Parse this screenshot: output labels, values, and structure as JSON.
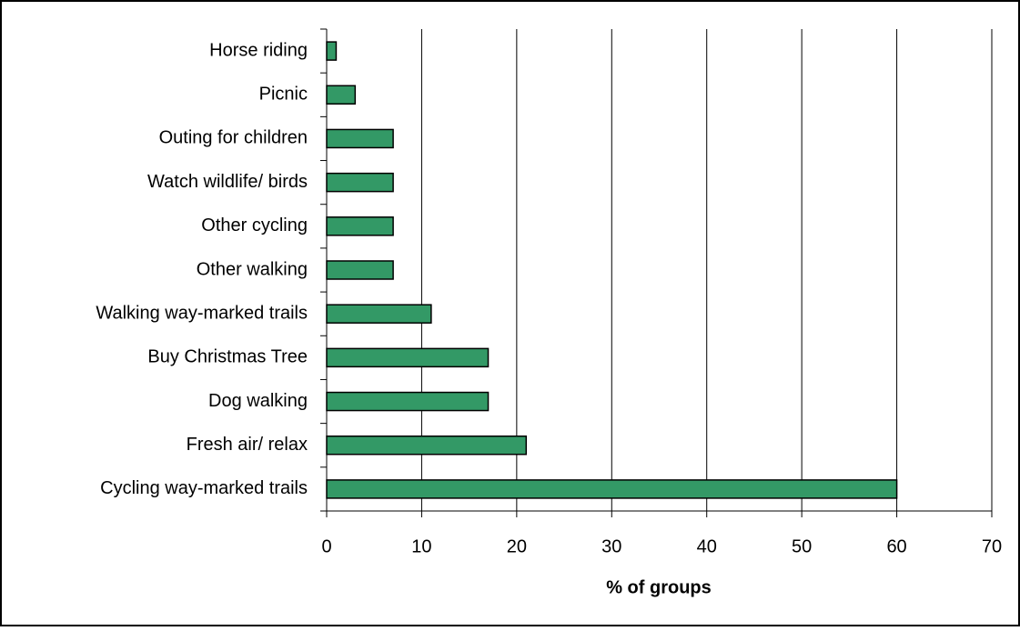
{
  "chart_data": {
    "type": "barh",
    "categories": [
      "Horse riding",
      "Picnic",
      "Outing for children",
      "Watch wildlife/ birds",
      "Other cycling",
      "Other walking",
      "Walking way-marked trails",
      "Buy Christmas Tree",
      "Dog walking",
      "Fresh air/ relax",
      "Cycling way-marked trails"
    ],
    "values": [
      1,
      3,
      7,
      7,
      7,
      7,
      11,
      17,
      17,
      21,
      60
    ],
    "color": "#339966",
    "xlim": [
      0,
      70
    ],
    "xticks": [
      0,
      10,
      20,
      30,
      40,
      50,
      60,
      70
    ],
    "x_label": "% of groups",
    "grid": true
  }
}
